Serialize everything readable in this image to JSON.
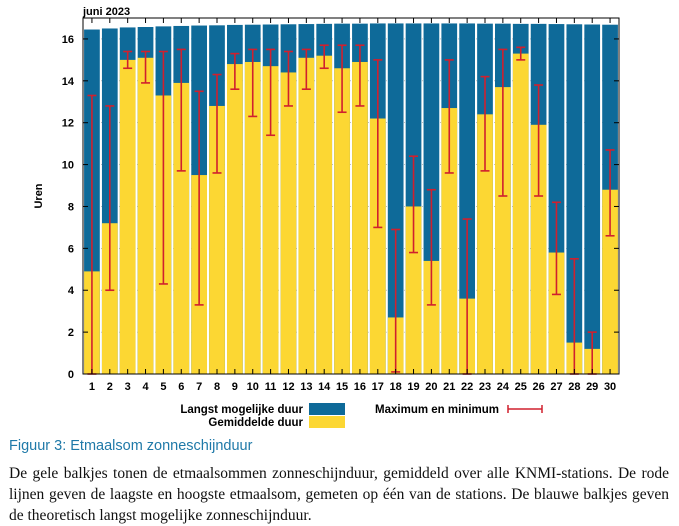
{
  "chart_data": {
    "type": "bar",
    "title": "juni 2023",
    "ylabel": "Uren",
    "xlabel": "",
    "ylim": [
      0,
      17
    ],
    "yticks": [
      0,
      2,
      4,
      6,
      8,
      10,
      12,
      14,
      16
    ],
    "grid": true,
    "categories": [
      "1",
      "2",
      "3",
      "4",
      "5",
      "6",
      "7",
      "8",
      "9",
      "10",
      "11",
      "12",
      "13",
      "14",
      "15",
      "16",
      "17",
      "18",
      "19",
      "20",
      "21",
      "22",
      "23",
      "24",
      "25",
      "26",
      "27",
      "28",
      "29",
      "30"
    ],
    "series": [
      {
        "name": "Langst mogelijke duur",
        "color": "#0e6a99",
        "values": [
          16.45,
          16.5,
          16.55,
          16.57,
          16.6,
          16.62,
          16.64,
          16.65,
          16.67,
          16.68,
          16.69,
          16.7,
          16.71,
          16.72,
          16.73,
          16.73,
          16.74,
          16.74,
          16.74,
          16.74,
          16.74,
          16.74,
          16.73,
          16.73,
          16.72,
          16.72,
          16.71,
          16.7,
          16.69,
          16.68
        ]
      },
      {
        "name": "Gemiddelde duur",
        "color": "#fcd733",
        "values": [
          4.9,
          7.2,
          15.0,
          15.1,
          13.3,
          13.9,
          9.5,
          12.8,
          14.8,
          14.9,
          14.7,
          14.4,
          15.1,
          15.2,
          14.6,
          14.9,
          12.2,
          2.7,
          8.0,
          5.4,
          12.7,
          3.6,
          12.4,
          13.7,
          15.3,
          11.9,
          5.8,
          1.5,
          1.2,
          8.8
        ]
      }
    ],
    "range": {
      "name": "Maximum en minimum",
      "color": "#d0202e",
      "min": [
        0.0,
        4.0,
        14.6,
        13.9,
        4.3,
        9.7,
        3.3,
        9.6,
        13.6,
        12.3,
        11.4,
        12.8,
        13.6,
        14.6,
        12.5,
        12.8,
        7.0,
        0.1,
        5.8,
        3.3,
        9.6,
        0.0,
        9.7,
        8.5,
        15.0,
        8.5,
        3.8,
        0.0,
        0.0,
        6.6
      ],
      "max": [
        13.3,
        12.8,
        15.4,
        15.4,
        15.4,
        15.5,
        13.5,
        14.3,
        15.3,
        15.5,
        15.5,
        15.4,
        15.5,
        15.7,
        15.7,
        15.7,
        15.0,
        6.9,
        10.4,
        8.8,
        15.0,
        7.4,
        14.2,
        15.5,
        15.6,
        13.8,
        8.2,
        5.5,
        2.0,
        10.7
      ]
    }
  },
  "legend": {
    "blue_label": "Langst mogelijke duur",
    "yellow_label": "Gemiddelde duur",
    "range_label": "Maximum en minimum"
  },
  "figure": {
    "title": "Figuur 3: Etmaalsom zonneschijnduur",
    "caption": "De gele balkjes tonen de etmaalsommen zonneschijnduur, gemiddeld over alle KNMI-stations. De rode lijnen geven de laagste en hoogste etmaalsom, gemeten op één van de stations. De blauwe balkjes geven de theoretisch langst mogelijke zonneschijnduur."
  },
  "colors": {
    "blue": "#0e6a99",
    "yellow": "#fcd733",
    "red": "#d0202e"
  }
}
